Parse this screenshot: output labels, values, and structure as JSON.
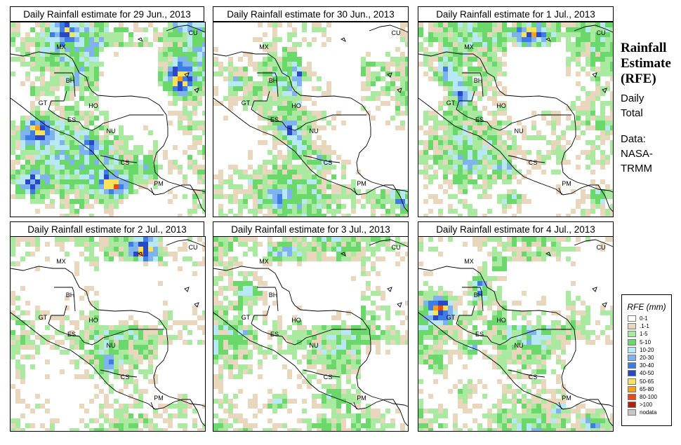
{
  "panels": [
    {
      "title": "Daily Rainfall estimate for  29 Jun., 2013",
      "seed": 11,
      "blobs": [
        [
          0.13,
          0.55,
          0.09,
          0.08,
          5
        ],
        [
          0.1,
          0.82,
          0.08,
          0.07,
          4
        ],
        [
          0.53,
          0.83,
          0.08,
          0.06,
          5
        ],
        [
          0.86,
          0.3,
          0.08,
          0.09,
          5
        ],
        [
          0.88,
          0.02,
          0.06,
          0.03,
          3
        ],
        [
          0.28,
          0.05,
          0.07,
          0.05,
          3
        ],
        [
          0.32,
          0.3,
          0.04,
          0.04,
          2
        ],
        [
          0.4,
          0.62,
          0.04,
          0.04,
          2
        ],
        [
          0.7,
          0.75,
          0.06,
          0.05,
          2
        ],
        [
          0.12,
          0.36,
          0.05,
          0.05,
          2
        ]
      ],
      "level": 1.05
    },
    {
      "title": "Daily Rainfall estimate for  30 Jun., 2013",
      "seed": 23,
      "blobs": [
        [
          0.39,
          0.55,
          0.06,
          0.05,
          4
        ],
        [
          0.44,
          0.63,
          0.05,
          0.04,
          3
        ],
        [
          0.56,
          0.7,
          0.04,
          0.04,
          3
        ],
        [
          0.12,
          0.3,
          0.05,
          0.05,
          2
        ],
        [
          0.44,
          0.25,
          0.05,
          0.05,
          2
        ],
        [
          0.33,
          0.9,
          0.06,
          0.04,
          2
        ],
        [
          0.8,
          0.22,
          0.06,
          0.06,
          1
        ],
        [
          0.94,
          0.9,
          0.05,
          0.04,
          2
        ],
        [
          0.2,
          0.8,
          0.06,
          0.05,
          1
        ]
      ],
      "level": 0.9
    },
    {
      "title": "Daily Rainfall estimate for  1 Jul., 2013",
      "seed": 37,
      "blobs": [
        [
          0.58,
          0.06,
          0.09,
          0.05,
          5
        ],
        [
          0.22,
          0.36,
          0.05,
          0.06,
          4
        ],
        [
          0.14,
          0.25,
          0.05,
          0.05,
          3
        ],
        [
          0.48,
          0.9,
          0.06,
          0.04,
          4
        ],
        [
          0.92,
          0.88,
          0.04,
          0.04,
          3
        ],
        [
          0.44,
          0.75,
          0.05,
          0.05,
          2
        ],
        [
          0.66,
          0.45,
          0.03,
          0.03,
          2
        ],
        [
          0.25,
          0.7,
          0.07,
          0.05,
          1
        ]
      ],
      "level": 0.85
    },
    {
      "title": "Daily Rainfall estimate for  2 Jul., 2013",
      "seed": 53,
      "blobs": [
        [
          0.68,
          0.07,
          0.07,
          0.06,
          5
        ],
        [
          0.55,
          0.23,
          0.04,
          0.04,
          1
        ],
        [
          0.92,
          0.14,
          0.05,
          0.05,
          2
        ],
        [
          0.87,
          0.84,
          0.06,
          0.07,
          3
        ],
        [
          0.17,
          0.85,
          0.04,
          0.04,
          2
        ],
        [
          0.5,
          0.65,
          0.05,
          0.05,
          2
        ],
        [
          0.34,
          0.55,
          0.03,
          0.03,
          1
        ]
      ],
      "level": 0.78
    },
    {
      "title": "Daily Rainfall estimate for  3 Jul., 2013",
      "seed": 71,
      "blobs": [
        [
          0.36,
          0.08,
          0.1,
          0.05,
          3
        ],
        [
          0.18,
          0.28,
          0.07,
          0.07,
          3
        ],
        [
          0.32,
          0.84,
          0.08,
          0.05,
          3
        ],
        [
          0.14,
          0.5,
          0.05,
          0.04,
          2
        ],
        [
          0.7,
          0.2,
          0.06,
          0.06,
          1
        ],
        [
          0.6,
          0.82,
          0.06,
          0.04,
          2
        ],
        [
          0.86,
          0.92,
          0.07,
          0.04,
          1
        ]
      ],
      "level": 0.84
    },
    {
      "title": "Daily Rainfall estimate for  4 Jul., 2013",
      "seed": 97,
      "blobs": [
        [
          0.11,
          0.37,
          0.07,
          0.07,
          5
        ],
        [
          0.31,
          0.26,
          0.05,
          0.07,
          4
        ],
        [
          0.26,
          0.56,
          0.04,
          0.04,
          3
        ],
        [
          0.1,
          0.65,
          0.06,
          0.05,
          2
        ],
        [
          0.26,
          0.78,
          0.07,
          0.05,
          3
        ],
        [
          0.88,
          0.95,
          0.06,
          0.04,
          3
        ],
        [
          0.4,
          0.14,
          0.05,
          0.05,
          2
        ],
        [
          0.72,
          0.88,
          0.05,
          0.04,
          2
        ]
      ],
      "level": 0.95
    }
  ],
  "countries": [
    {
      "code": "MX"
    },
    {
      "code": "BH"
    },
    {
      "code": "GT"
    },
    {
      "code": "HO"
    },
    {
      "code": "ES"
    },
    {
      "code": "NU"
    },
    {
      "code": "CS"
    },
    {
      "code": "PM"
    },
    {
      "code": "CU"
    }
  ],
  "side": {
    "title_lines": [
      "Rainfall",
      "Estimate",
      "(RFE)"
    ],
    "subtitle_lines": [
      "Daily",
      "Total"
    ],
    "source_lines": [
      "Data:",
      "NASA-",
      "TRMM"
    ]
  },
  "legend": {
    "title": "RFE (mm)",
    "items": [
      {
        "label": "0-1",
        "color": "#ffffff"
      },
      {
        "label": ".1-1",
        "color": "#e8d7bd"
      },
      {
        "label": "1-5",
        "color": "#a9eaa0"
      },
      {
        "label": "5-10",
        "color": "#6bd86b"
      },
      {
        "label": "10-20",
        "color": "#b9e8f5"
      },
      {
        "label": "20-30",
        "color": "#7fb3f0"
      },
      {
        "label": "30-40",
        "color": "#3f7de6"
      },
      {
        "label": "40-50",
        "color": "#2848c8"
      },
      {
        "label": "50-65",
        "color": "#f7e25a"
      },
      {
        "label": "65-80",
        "color": "#f7a01c"
      },
      {
        "label": "80-100",
        "color": "#e44a1b"
      },
      {
        "label": ">100",
        "color": "#b0200f"
      },
      {
        "label": "nodata",
        "color": "#c6c6c6"
      }
    ]
  }
}
